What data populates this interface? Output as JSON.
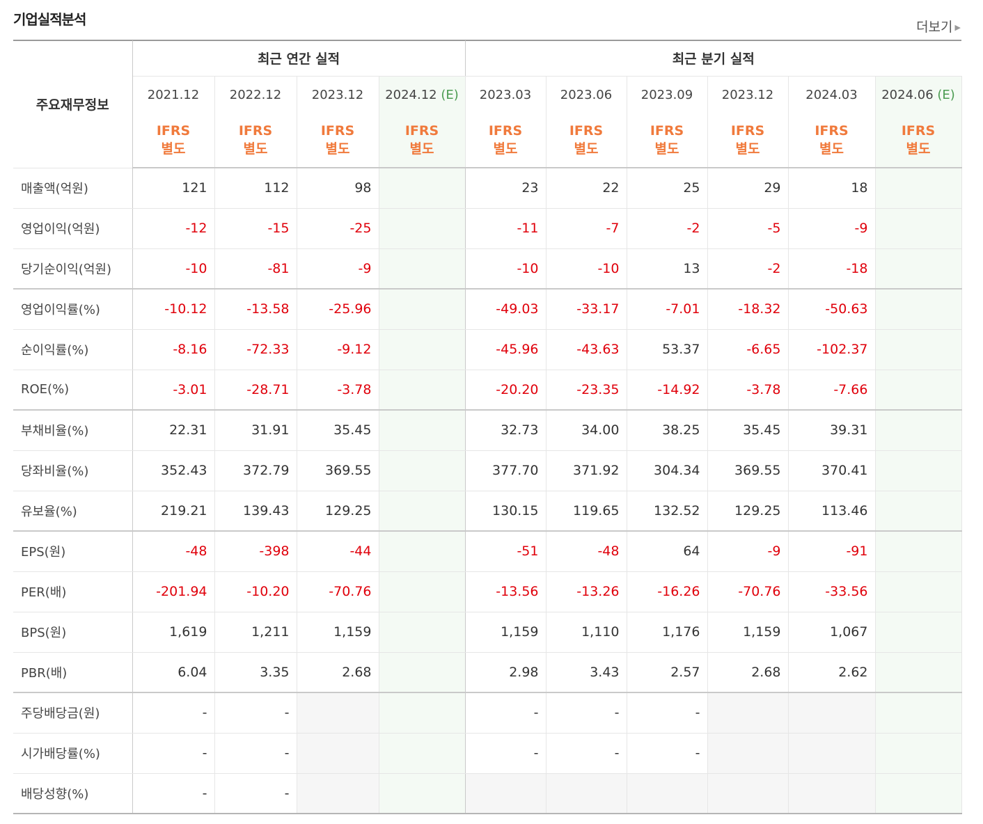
{
  "section": {
    "title": "기업실적분석",
    "more_label": "더보기"
  },
  "header": {
    "label_col": "주요재무정보",
    "annual_group": "최근 연간 실적",
    "quarter_group": "최근 분기 실적",
    "periods": [
      "2021.12",
      "2022.12",
      "2023.12",
      "2024.12",
      "2023.03",
      "2023.06",
      "2023.09",
      "2023.12",
      "2024.03",
      "2024.06"
    ],
    "estimate_suffix": "(E)",
    "accounting_line1": "IFRS",
    "accounting_line2": "별도"
  },
  "rows": [
    {
      "label": "매출액(억원)",
      "values": [
        "121",
        "112",
        "98",
        "",
        "23",
        "22",
        "25",
        "29",
        "18",
        ""
      ]
    },
    {
      "label": "영업이익(억원)",
      "values": [
        "-12",
        "-15",
        "-25",
        "",
        "-11",
        "-7",
        "-2",
        "-5",
        "-9",
        ""
      ]
    },
    {
      "label": "당기순이익(억원)",
      "values": [
        "-10",
        "-81",
        "-9",
        "",
        "-10",
        "-10",
        "13",
        "-2",
        "-18",
        ""
      ]
    },
    {
      "label": "영업이익률(%)",
      "values": [
        "-10.12",
        "-13.58",
        "-25.96",
        "",
        "-49.03",
        "-33.17",
        "-7.01",
        "-18.32",
        "-50.63",
        ""
      ]
    },
    {
      "label": "순이익률(%)",
      "values": [
        "-8.16",
        "-72.33",
        "-9.12",
        "",
        "-45.96",
        "-43.63",
        "53.37",
        "-6.65",
        "-102.37",
        ""
      ]
    },
    {
      "label": "ROE(%)",
      "values": [
        "-3.01",
        "-28.71",
        "-3.78",
        "",
        "-20.20",
        "-23.35",
        "-14.92",
        "-3.78",
        "-7.66",
        ""
      ]
    },
    {
      "label": "부채비율(%)",
      "values": [
        "22.31",
        "31.91",
        "35.45",
        "",
        "32.73",
        "34.00",
        "38.25",
        "35.45",
        "39.31",
        ""
      ]
    },
    {
      "label": "당좌비율(%)",
      "values": [
        "352.43",
        "372.79",
        "369.55",
        "",
        "377.70",
        "371.92",
        "304.34",
        "369.55",
        "370.41",
        ""
      ]
    },
    {
      "label": "유보율(%)",
      "values": [
        "219.21",
        "139.43",
        "129.25",
        "",
        "130.15",
        "119.65",
        "132.52",
        "129.25",
        "113.46",
        ""
      ]
    },
    {
      "label": "EPS(원)",
      "values": [
        "-48",
        "-398",
        "-44",
        "",
        "-51",
        "-48",
        "64",
        "-9",
        "-91",
        ""
      ]
    },
    {
      "label": "PER(배)",
      "values": [
        "-201.94",
        "-10.20",
        "-70.76",
        "",
        "-13.56",
        "-13.26",
        "-16.26",
        "-70.76",
        "-33.56",
        ""
      ]
    },
    {
      "label": "BPS(원)",
      "values": [
        "1,619",
        "1,211",
        "1,159",
        "",
        "1,159",
        "1,110",
        "1,176",
        "1,159",
        "1,067",
        ""
      ]
    },
    {
      "label": "PBR(배)",
      "values": [
        "6.04",
        "3.35",
        "2.68",
        "",
        "2.98",
        "3.43",
        "2.57",
        "2.68",
        "2.62",
        ""
      ]
    },
    {
      "label": "주당배당금(원)",
      "values": [
        "-",
        "-",
        "",
        "",
        "-",
        "-",
        "-",
        "",
        "",
        ""
      ]
    },
    {
      "label": "시가배당률(%)",
      "values": [
        "-",
        "-",
        "",
        "",
        "-",
        "-",
        "-",
        "",
        "",
        ""
      ]
    },
    {
      "label": "배당성향(%)",
      "values": [
        "-",
        "-",
        "",
        "",
        "",
        "",
        "",
        "",
        "",
        ""
      ]
    }
  ],
  "colors": {
    "negative": "#e0000b",
    "ifrs": "#f07a3c",
    "estimate_bg": "#f4faf4",
    "estimate_suffix": "#4a9b50",
    "empty_bg": "#f6f6f6"
  }
}
